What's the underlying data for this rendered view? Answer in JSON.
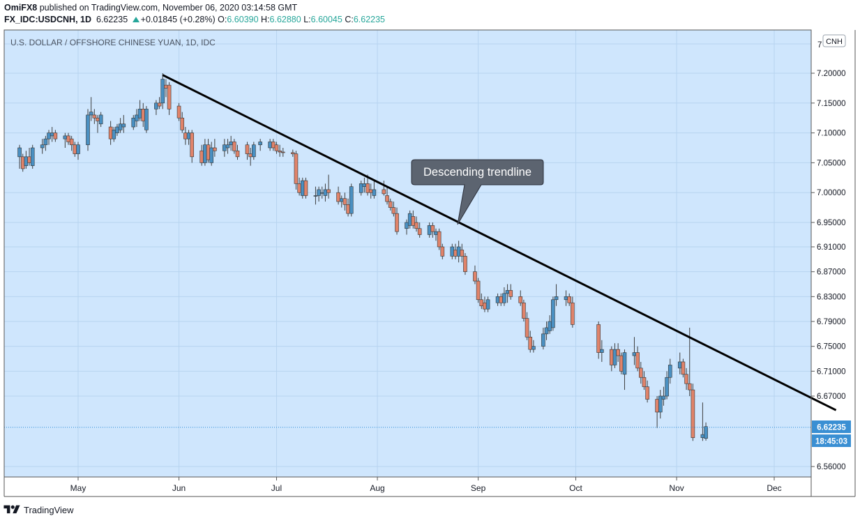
{
  "header": {
    "author": "OmiFX8",
    "published_text": "published on TradingView.com, November 06, 2020 03:14:58 GMT",
    "symbol": "FX_IDC:USDCNH, 1D",
    "last": "6.62235",
    "change": "+0.01845 (+0.28%)",
    "o_label": "O:",
    "o": "6.60390",
    "h_label": "H:",
    "h": "6.62880",
    "l_label": "L:",
    "l": "6.60045",
    "c_label": "C:",
    "c": "6.62235"
  },
  "footer": {
    "brand": "TradingView"
  },
  "colors": {
    "plot_bg": "#cfe6fd",
    "grid": "#b7d4f0",
    "up": "#4a90c2",
    "down": "#e0836a",
    "wick": "#3c3c3c",
    "trendline": "#000000",
    "price_tag": "#3a8fd3",
    "callout_bg": "#5c6470"
  },
  "chart_data": {
    "type": "candlestick",
    "title": "U.S. DOLLAR / OFFSHORE CHINESE YUAN, 1D, IDC",
    "currency": "CNH",
    "y_axis_ticks": [
      "7.20000",
      "7.15000",
      "7.10000",
      "7.05000",
      "7.00000",
      "6.95000",
      "6.91000",
      "6.87000",
      "6.83000",
      "6.79000",
      "6.75000",
      "6.71000",
      "6.67000",
      "6.56000"
    ],
    "y_axis_top_partial": "7",
    "x_axis_labels": [
      "May",
      "Jun",
      "Jul",
      "Aug",
      "Sep",
      "Oct",
      "Nov",
      "Dec"
    ],
    "last_price_label": "6.62235",
    "countdown_label": "18:45:03",
    "annotation": "Descending trendline",
    "trendline": {
      "start": {
        "date": "2020-05-27",
        "price": 7.197
      },
      "end": {
        "date": "2020-12-20",
        "price": 6.648
      }
    },
    "candles": [
      {
        "d": "2020-04-13",
        "o": 7.06,
        "h": 7.08,
        "l": 7.04,
        "c": 7.075
      },
      {
        "d": "2020-04-14",
        "o": 7.06,
        "h": 7.065,
        "l": 7.035,
        "c": 7.04
      },
      {
        "d": "2020-04-15",
        "o": 7.045,
        "h": 7.07,
        "l": 7.04,
        "c": 7.06
      },
      {
        "d": "2020-04-16",
        "o": 7.06,
        "h": 7.075,
        "l": 7.045,
        "c": 7.05
      },
      {
        "d": "2020-04-17",
        "o": 7.045,
        "h": 7.08,
        "l": 7.04,
        "c": 7.075
      },
      {
        "d": "2020-04-20",
        "o": 7.075,
        "h": 7.09,
        "l": 7.065,
        "c": 7.08
      },
      {
        "d": "2020-04-21",
        "o": 7.08,
        "h": 7.095,
        "l": 7.07,
        "c": 7.09
      },
      {
        "d": "2020-04-22",
        "o": 7.09,
        "h": 7.105,
        "l": 7.08,
        "c": 7.1
      },
      {
        "d": "2020-04-23",
        "o": 7.095,
        "h": 7.11,
        "l": 7.085,
        "c": 7.1
      },
      {
        "d": "2020-04-24",
        "o": 7.1,
        "h": 7.105,
        "l": 7.085,
        "c": 7.09
      },
      {
        "d": "2020-04-27",
        "o": 7.09,
        "h": 7.1,
        "l": 7.075,
        "c": 7.095
      },
      {
        "d": "2020-04-28",
        "o": 7.095,
        "h": 7.1,
        "l": 7.08,
        "c": 7.085
      },
      {
        "d": "2020-04-29",
        "o": 7.09,
        "h": 7.095,
        "l": 7.07,
        "c": 7.08
      },
      {
        "d": "2020-04-30",
        "o": 7.08,
        "h": 7.085,
        "l": 7.06,
        "c": 7.065
      },
      {
        "d": "2020-05-01",
        "o": 7.065,
        "h": 7.085,
        "l": 7.055,
        "c": 7.08
      },
      {
        "d": "2020-05-04",
        "o": 7.08,
        "h": 7.14,
        "l": 7.07,
        "c": 7.13
      },
      {
        "d": "2020-05-05",
        "o": 7.13,
        "h": 7.16,
        "l": 7.12,
        "c": 7.135
      },
      {
        "d": "2020-05-06",
        "o": 7.13,
        "h": 7.14,
        "l": 7.115,
        "c": 7.125
      },
      {
        "d": "2020-05-07",
        "o": 7.125,
        "h": 7.13,
        "l": 7.1,
        "c": 7.12
      },
      {
        "d": "2020-05-08",
        "o": 7.115,
        "h": 7.135,
        "l": 7.11,
        "c": 7.13
      },
      {
        "d": "2020-05-11",
        "o": 7.11,
        "h": 7.12,
        "l": 7.08,
        "c": 7.09
      },
      {
        "d": "2020-05-12",
        "o": 7.09,
        "h": 7.11,
        "l": 7.085,
        "c": 7.105
      },
      {
        "d": "2020-05-13",
        "o": 7.1,
        "h": 7.115,
        "l": 7.095,
        "c": 7.11
      },
      {
        "d": "2020-05-14",
        "o": 7.105,
        "h": 7.125,
        "l": 7.1,
        "c": 7.115
      },
      {
        "d": "2020-05-15",
        "o": 7.11,
        "h": 7.13,
        "l": 7.1,
        "c": 7.115
      },
      {
        "d": "2020-05-18",
        "o": 7.11,
        "h": 7.13,
        "l": 7.105,
        "c": 7.125
      },
      {
        "d": "2020-05-19",
        "o": 7.12,
        "h": 7.14,
        "l": 7.11,
        "c": 7.13
      },
      {
        "d": "2020-05-20",
        "o": 7.125,
        "h": 7.155,
        "l": 7.12,
        "c": 7.14
      },
      {
        "d": "2020-05-21",
        "o": 7.14,
        "h": 7.15,
        "l": 7.11,
        "c": 7.12
      },
      {
        "d": "2020-05-22",
        "o": 7.105,
        "h": 7.145,
        "l": 7.1,
        "c": 7.14
      },
      {
        "d": "2020-05-25",
        "o": 7.14,
        "h": 7.155,
        "l": 7.13,
        "c": 7.15
      },
      {
        "d": "2020-05-26",
        "o": 7.15,
        "h": 7.16,
        "l": 7.14,
        "c": 7.145
      },
      {
        "d": "2020-05-27",
        "o": 7.15,
        "h": 7.2,
        "l": 7.14,
        "c": 7.19
      },
      {
        "d": "2020-05-28",
        "o": 7.18,
        "h": 7.19,
        "l": 7.16,
        "c": 7.175
      },
      {
        "d": "2020-05-29",
        "o": 7.18,
        "h": 7.185,
        "l": 7.13,
        "c": 7.14
      },
      {
        "d": "2020-06-01",
        "o": 7.145,
        "h": 7.15,
        "l": 7.12,
        "c": 7.125
      },
      {
        "d": "2020-06-02",
        "o": 7.125,
        "h": 7.135,
        "l": 7.1,
        "c": 7.105
      },
      {
        "d": "2020-06-03",
        "o": 7.1,
        "h": 7.11,
        "l": 7.08,
        "c": 7.09
      },
      {
        "d": "2020-06-04",
        "o": 7.09,
        "h": 7.105,
        "l": 7.08,
        "c": 7.1
      },
      {
        "d": "2020-06-05",
        "o": 7.1,
        "h": 7.105,
        "l": 7.05,
        "c": 7.06
      },
      {
        "d": "2020-06-08",
        "o": 7.07,
        "h": 7.08,
        "l": 7.045,
        "c": 7.05
      },
      {
        "d": "2020-06-09",
        "o": 7.05,
        "h": 7.09,
        "l": 7.045,
        "c": 7.08
      },
      {
        "d": "2020-06-10",
        "o": 7.08,
        "h": 7.09,
        "l": 7.05,
        "c": 7.055
      },
      {
        "d": "2020-06-11",
        "o": 7.05,
        "h": 7.085,
        "l": 7.045,
        "c": 7.075
      },
      {
        "d": "2020-06-12",
        "o": 7.075,
        "h": 7.09,
        "l": 7.06,
        "c": 7.07
      },
      {
        "d": "2020-06-15",
        "o": 7.07,
        "h": 7.09,
        "l": 7.06,
        "c": 7.08
      },
      {
        "d": "2020-06-16",
        "o": 7.075,
        "h": 7.09,
        "l": 7.065,
        "c": 7.08
      },
      {
        "d": "2020-06-17",
        "o": 7.08,
        "h": 7.095,
        "l": 7.07,
        "c": 7.085
      },
      {
        "d": "2020-06-18",
        "o": 7.085,
        "h": 7.09,
        "l": 7.065,
        "c": 7.07
      },
      {
        "d": "2020-06-19",
        "o": 7.07,
        "h": 7.08,
        "l": 7.055,
        "c": 7.06
      },
      {
        "d": "2020-06-22",
        "o": 7.08,
        "h": 7.085,
        "l": 7.055,
        "c": 7.065
      },
      {
        "d": "2020-06-23",
        "o": 7.065,
        "h": 7.075,
        "l": 7.045,
        "c": 7.06
      },
      {
        "d": "2020-06-24",
        "o": 7.06,
        "h": 7.085,
        "l": 7.055,
        "c": 7.08
      },
      {
        "d": "2020-06-26",
        "o": 7.08,
        "h": 7.09,
        "l": 7.07,
        "c": 7.085
      },
      {
        "d": "2020-06-29",
        "o": 7.075,
        "h": 7.09,
        "l": 7.07,
        "c": 7.085
      },
      {
        "d": "2020-06-30",
        "o": 7.085,
        "h": 7.09,
        "l": 7.07,
        "c": 7.075
      },
      {
        "d": "2020-07-01",
        "o": 7.08,
        "h": 7.085,
        "l": 7.065,
        "c": 7.07
      },
      {
        "d": "2020-07-02",
        "o": 7.07,
        "h": 7.08,
        "l": 7.06,
        "c": 7.068
      },
      {
        "d": "2020-07-03",
        "o": 7.068,
        "h": 7.075,
        "l": 7.06,
        "c": 7.067
      },
      {
        "d": "2020-07-06",
        "o": 7.067,
        "h": 7.072,
        "l": 7.06,
        "c": 7.065
      },
      {
        "d": "2020-07-07",
        "o": 7.065,
        "h": 7.07,
        "l": 7.005,
        "c": 7.015
      },
      {
        "d": "2020-07-08",
        "o": 7.015,
        "h": 7.025,
        "l": 6.995,
        "c": 7.0
      },
      {
        "d": "2020-07-09",
        "o": 6.995,
        "h": 7.025,
        "l": 6.99,
        "c": 7.02
      },
      {
        "d": "2020-07-10",
        "o": 7.02,
        "h": 7.025,
        "l": 6.99,
        "c": 6.995
      },
      {
        "d": "2020-07-13",
        "o": 6.995,
        "h": 7.01,
        "l": 6.98,
        "c": 6.995
      },
      {
        "d": "2020-07-14",
        "o": 6.995,
        "h": 7.01,
        "l": 6.985,
        "c": 7.005
      },
      {
        "d": "2020-07-15",
        "o": 7.0,
        "h": 7.01,
        "l": 6.99,
        "c": 7.0
      },
      {
        "d": "2020-07-16",
        "o": 6.995,
        "h": 7.015,
        "l": 6.985,
        "c": 7.005
      },
      {
        "d": "2020-07-17",
        "o": 7.005,
        "h": 7.03,
        "l": 6.99,
        "c": 7.0
      },
      {
        "d": "2020-07-20",
        "o": 7.0,
        "h": 7.01,
        "l": 6.98,
        "c": 6.985
      },
      {
        "d": "2020-07-21",
        "o": 6.985,
        "h": 6.995,
        "l": 6.975,
        "c": 6.99
      },
      {
        "d": "2020-07-22",
        "o": 6.99,
        "h": 7.0,
        "l": 6.97,
        "c": 6.98
      },
      {
        "d": "2020-07-23",
        "o": 6.98,
        "h": 6.99,
        "l": 6.96,
        "c": 6.965
      },
      {
        "d": "2020-07-24",
        "o": 6.965,
        "h": 7.015,
        "l": 6.96,
        "c": 7.01
      },
      {
        "d": "2020-07-27",
        "o": 7.0,
        "h": 7.02,
        "l": 6.995,
        "c": 7.015
      },
      {
        "d": "2020-07-28",
        "o": 7.01,
        "h": 7.025,
        "l": 7.0,
        "c": 7.015
      },
      {
        "d": "2020-07-29",
        "o": 7.015,
        "h": 7.03,
        "l": 6.995,
        "c": 7.0
      },
      {
        "d": "2020-07-30",
        "o": 7.005,
        "h": 7.015,
        "l": 6.99,
        "c": 7.0
      },
      {
        "d": "2020-07-31",
        "o": 6.995,
        "h": 7.02,
        "l": 6.99,
        "c": 7.005
      },
      {
        "d": "2020-08-03",
        "o": 7.005,
        "h": 7.02,
        "l": 6.995,
        "c": 6.998
      },
      {
        "d": "2020-08-04",
        "o": 6.995,
        "h": 7.01,
        "l": 6.98,
        "c": 6.985
      },
      {
        "d": "2020-08-05",
        "o": 6.985,
        "h": 6.99,
        "l": 6.97,
        "c": 6.975
      },
      {
        "d": "2020-08-06",
        "o": 6.975,
        "h": 6.985,
        "l": 6.96,
        "c": 6.965
      },
      {
        "d": "2020-08-07",
        "o": 6.965,
        "h": 6.975,
        "l": 6.93,
        "c": 6.935
      },
      {
        "d": "2020-08-10",
        "o": 6.94,
        "h": 6.955,
        "l": 6.93,
        "c": 6.95
      },
      {
        "d": "2020-08-11",
        "o": 6.945,
        "h": 6.97,
        "l": 6.94,
        "c": 6.965
      },
      {
        "d": "2020-08-12",
        "o": 6.96,
        "h": 6.97,
        "l": 6.94,
        "c": 6.945
      },
      {
        "d": "2020-08-13",
        "o": 6.95,
        "h": 6.96,
        "l": 6.935,
        "c": 6.94
      },
      {
        "d": "2020-08-14",
        "o": 6.94,
        "h": 6.95,
        "l": 6.925,
        "c": 6.93
      },
      {
        "d": "2020-08-17",
        "o": 6.93,
        "h": 6.95,
        "l": 6.925,
        "c": 6.945
      },
      {
        "d": "2020-08-18",
        "o": 6.945,
        "h": 6.95,
        "l": 6.925,
        "c": 6.935
      },
      {
        "d": "2020-08-19",
        "o": 6.93,
        "h": 6.94,
        "l": 6.92,
        "c": 6.935
      },
      {
        "d": "2020-08-20",
        "o": 6.935,
        "h": 6.94,
        "l": 6.905,
        "c": 6.91
      },
      {
        "d": "2020-08-21",
        "o": 6.91,
        "h": 6.915,
        "l": 6.89,
        "c": 6.895
      },
      {
        "d": "2020-08-24",
        "o": 6.895,
        "h": 6.915,
        "l": 6.89,
        "c": 6.91
      },
      {
        "d": "2020-08-25",
        "o": 6.905,
        "h": 6.915,
        "l": 6.89,
        "c": 6.895
      },
      {
        "d": "2020-08-26",
        "o": 6.895,
        "h": 6.92,
        "l": 6.885,
        "c": 6.91
      },
      {
        "d": "2020-08-27",
        "o": 6.905,
        "h": 6.915,
        "l": 6.885,
        "c": 6.895
      },
      {
        "d": "2020-08-28",
        "o": 6.895,
        "h": 6.9,
        "l": 6.865,
        "c": 6.87
      },
      {
        "d": "2020-08-31",
        "o": 6.87,
        "h": 6.88,
        "l": 6.85,
        "c": 6.855
      },
      {
        "d": "2020-09-01",
        "o": 6.855,
        "h": 6.86,
        "l": 6.82,
        "c": 6.825
      },
      {
        "d": "2020-09-02",
        "o": 6.825,
        "h": 6.835,
        "l": 6.81,
        "c": 6.815
      },
      {
        "d": "2020-09-03",
        "o": 6.82,
        "h": 6.83,
        "l": 6.805,
        "c": 6.81
      },
      {
        "d": "2020-09-04",
        "o": 6.81,
        "h": 6.83,
        "l": 6.805,
        "c": 6.825
      },
      {
        "d": "2020-09-07",
        "o": 6.82,
        "h": 6.835,
        "l": 6.815,
        "c": 6.83
      },
      {
        "d": "2020-09-08",
        "o": 6.83,
        "h": 6.835,
        "l": 6.815,
        "c": 6.82
      },
      {
        "d": "2020-09-09",
        "o": 6.82,
        "h": 6.845,
        "l": 6.815,
        "c": 6.835
      },
      {
        "d": "2020-09-10",
        "o": 6.835,
        "h": 6.85,
        "l": 6.82,
        "c": 6.84
      },
      {
        "d": "2020-09-11",
        "o": 6.84,
        "h": 6.85,
        "l": 6.825,
        "c": 6.83
      },
      {
        "d": "2020-09-14",
        "o": 6.83,
        "h": 6.84,
        "l": 6.815,
        "c": 6.82
      },
      {
        "d": "2020-09-15",
        "o": 6.82,
        "h": 6.825,
        "l": 6.79,
        "c": 6.795
      },
      {
        "d": "2020-09-16",
        "o": 6.795,
        "h": 6.805,
        "l": 6.76,
        "c": 6.765
      },
      {
        "d": "2020-09-17",
        "o": 6.765,
        "h": 6.775,
        "l": 6.74,
        "c": 6.745
      },
      {
        "d": "2020-09-18",
        "o": 6.745,
        "h": 6.76,
        "l": 6.74,
        "c": 6.75
      },
      {
        "d": "2020-09-21",
        "o": 6.75,
        "h": 6.78,
        "l": 6.745,
        "c": 6.77
      },
      {
        "d": "2020-09-22",
        "o": 6.77,
        "h": 6.79,
        "l": 6.76,
        "c": 6.78
      },
      {
        "d": "2020-09-23",
        "o": 6.775,
        "h": 6.8,
        "l": 6.77,
        "c": 6.79
      },
      {
        "d": "2020-09-24",
        "o": 6.78,
        "h": 6.83,
        "l": 6.775,
        "c": 6.825
      },
      {
        "d": "2020-09-25",
        "o": 6.825,
        "h": 6.85,
        "l": 6.815,
        "c": 6.83
      },
      {
        "d": "2020-09-28",
        "o": 6.825,
        "h": 6.84,
        "l": 6.815,
        "c": 6.83
      },
      {
        "d": "2020-09-29",
        "o": 6.83,
        "h": 6.835,
        "l": 6.815,
        "c": 6.82
      },
      {
        "d": "2020-09-30",
        "o": 6.82,
        "h": 6.83,
        "l": 6.78,
        "c": 6.785
      },
      {
        "d": "2020-10-08",
        "o": 6.785,
        "h": 6.79,
        "l": 6.73,
        "c": 6.74
      },
      {
        "d": "2020-10-09",
        "o": 6.74,
        "h": 6.76,
        "l": 6.725,
        "c": 6.745
      },
      {
        "d": "2020-10-12",
        "o": 6.745,
        "h": 6.75,
        "l": 6.71,
        "c": 6.72
      },
      {
        "d": "2020-10-13",
        "o": 6.72,
        "h": 6.755,
        "l": 6.715,
        "c": 6.745
      },
      {
        "d": "2020-10-14",
        "o": 6.745,
        "h": 6.755,
        "l": 6.725,
        "c": 6.735
      },
      {
        "d": "2020-10-15",
        "o": 6.735,
        "h": 6.74,
        "l": 6.705,
        "c": 6.71
      },
      {
        "d": "2020-10-16",
        "o": 6.705,
        "h": 6.745,
        "l": 6.68,
        "c": 6.74
      },
      {
        "d": "2020-10-19",
        "o": 6.735,
        "h": 6.765,
        "l": 6.72,
        "c": 6.74
      },
      {
        "d": "2020-10-20",
        "o": 6.74,
        "h": 6.75,
        "l": 6.71,
        "c": 6.715
      },
      {
        "d": "2020-10-21",
        "o": 6.715,
        "h": 6.725,
        "l": 6.69,
        "c": 6.7
      },
      {
        "d": "2020-10-22",
        "o": 6.7,
        "h": 6.71,
        "l": 6.68,
        "c": 6.685
      },
      {
        "d": "2020-10-23",
        "o": 6.685,
        "h": 6.695,
        "l": 6.66,
        "c": 6.665
      },
      {
        "d": "2020-10-26",
        "o": 6.665,
        "h": 6.67,
        "l": 6.62,
        "c": 6.645
      },
      {
        "d": "2020-10-27",
        "o": 6.645,
        "h": 6.68,
        "l": 6.635,
        "c": 6.67
      },
      {
        "d": "2020-10-28",
        "o": 6.665,
        "h": 6.685,
        "l": 6.655,
        "c": 6.67
      },
      {
        "d": "2020-10-29",
        "o": 6.67,
        "h": 6.71,
        "l": 6.665,
        "c": 6.7
      },
      {
        "d": "2020-10-30",
        "o": 6.7,
        "h": 6.73,
        "l": 6.69,
        "c": 6.72
      },
      {
        "d": "2020-11-02",
        "o": 6.715,
        "h": 6.74,
        "l": 6.705,
        "c": 6.725
      },
      {
        "d": "2020-11-03",
        "o": 6.725,
        "h": 6.73,
        "l": 6.7,
        "c": 6.705
      },
      {
        "d": "2020-11-04",
        "o": 6.705,
        "h": 6.715,
        "l": 6.68,
        "c": 6.69
      },
      {
        "d": "2020-11-05",
        "o": 6.69,
        "h": 6.78,
        "l": 6.67,
        "c": 6.68
      },
      {
        "d": "2020-11-06",
        "o": 6.68,
        "h": 6.69,
        "l": 6.6,
        "c": 6.605
      },
      {
        "d": "2020-11-09",
        "o": 6.605,
        "h": 6.66,
        "l": 6.6,
        "c": 6.61
      },
      {
        "d": "2020-11-10",
        "o": 6.6039,
        "h": 6.6288,
        "l": 6.60045,
        "c": 6.62235
      }
    ]
  }
}
